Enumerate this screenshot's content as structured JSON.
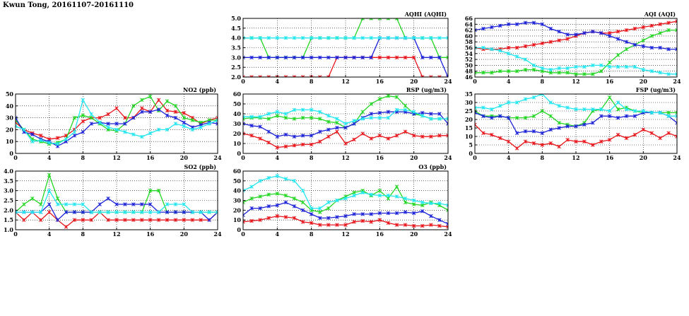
{
  "page_title": "Kwun Tong, 20161107-20161110",
  "colors": {
    "red": "#e8151b",
    "green": "#22d622",
    "blue": "#1c22d8",
    "cyan": "#22e6f0"
  },
  "chart_data": [
    {
      "id": "aqhi",
      "type": "line",
      "title": "AQHI (AQHI)",
      "xlim": [
        0,
        24
      ],
      "ylim": [
        2.0,
        5.0
      ],
      "grid": true,
      "xticks": [
        "0",
        "4",
        "8",
        "12",
        "16",
        "20",
        "24"
      ],
      "yticks": [
        "2.0",
        "2.5",
        "3.0",
        "3.5",
        "4.0",
        "4.5",
        "5.0"
      ],
      "x": [
        0,
        1,
        2,
        3,
        4,
        5,
        6,
        7,
        8,
        9,
        10,
        11,
        12,
        13,
        14,
        15,
        16,
        17,
        18,
        19,
        20,
        21,
        22,
        23,
        24
      ],
      "series": [
        {
          "color": "red",
          "values": [
            2,
            2,
            2,
            2,
            2,
            2,
            2,
            2,
            2,
            2,
            2,
            3,
            3,
            3,
            3,
            3,
            3,
            3,
            3,
            3,
            3,
            2,
            2,
            2,
            2
          ]
        },
        {
          "color": "green",
          "values": [
            4,
            4,
            4,
            3,
            3,
            3,
            3,
            3,
            4,
            4,
            4,
            4,
            4,
            4,
            5,
            5,
            5,
            5,
            5,
            4,
            4,
            4,
            4,
            3,
            3
          ]
        },
        {
          "color": "blue",
          "values": [
            3,
            3,
            3,
            3,
            3,
            3,
            3,
            3,
            3,
            3,
            3,
            3,
            3,
            3,
            3,
            3,
            4,
            4,
            4,
            4,
            4,
            3,
            3,
            3,
            2
          ]
        },
        {
          "color": "cyan",
          "values": [
            4,
            4,
            4,
            4,
            4,
            4,
            4,
            4,
            4,
            4,
            4,
            4,
            4,
            4,
            4,
            4,
            4,
            4,
            4,
            4,
            4,
            4,
            4,
            4,
            4
          ]
        }
      ]
    },
    {
      "id": "aqi",
      "type": "line",
      "title": "AQI (AQI)",
      "xlim": [
        0,
        24
      ],
      "ylim": [
        46,
        66
      ],
      "grid": true,
      "xticks": [
        "0",
        "4",
        "8",
        "12",
        "16",
        "20",
        "24"
      ],
      "yticks": [
        "46",
        "48",
        "50",
        "52",
        "54",
        "56",
        "58",
        "60",
        "62",
        "64",
        "66"
      ],
      "x": [
        0,
        1,
        2,
        3,
        4,
        5,
        6,
        7,
        8,
        9,
        10,
        11,
        12,
        13,
        14,
        15,
        16,
        17,
        18,
        19,
        20,
        21,
        22,
        23,
        24
      ],
      "series": [
        {
          "color": "red",
          "values": [
            56,
            55.5,
            55.5,
            55.5,
            56,
            56,
            56.5,
            57,
            57.5,
            58,
            58.5,
            59,
            60,
            61,
            61.5,
            61,
            61,
            61.5,
            62,
            62.5,
            63,
            63.5,
            64,
            64.5,
            65
          ]
        },
        {
          "color": "green",
          "values": [
            47.5,
            47.5,
            47.5,
            48,
            48,
            48,
            48.5,
            48.5,
            48,
            47.5,
            47.5,
            47.5,
            47,
            47,
            47,
            48,
            51,
            53.5,
            55.5,
            57,
            58.5,
            60,
            61,
            62,
            62
          ]
        },
        {
          "color": "blue",
          "values": [
            62,
            62.5,
            63,
            63.5,
            64,
            64,
            64.5,
            64.5,
            64,
            62.5,
            61.5,
            60.5,
            60.5,
            61,
            61.5,
            61,
            60,
            59,
            58,
            57,
            56.5,
            56,
            56,
            55.5,
            55.5
          ]
        },
        {
          "color": "cyan",
          "values": [
            56,
            56,
            55.5,
            55,
            54,
            53,
            52,
            50,
            49,
            48.5,
            49,
            49,
            49.5,
            49.5,
            50,
            50,
            49.5,
            49.5,
            49.5,
            49.5,
            48.5,
            48,
            47.5,
            47,
            47
          ]
        }
      ]
    },
    {
      "id": "no2",
      "type": "line",
      "title": "NO2 (ppb)",
      "xlim": [
        0,
        24
      ],
      "ylim": [
        0,
        50
      ],
      "grid": true,
      "xticks": [
        "0",
        "4",
        "8",
        "12",
        "16",
        "20",
        "24"
      ],
      "yticks": [
        "0",
        "10",
        "20",
        "30",
        "40",
        "50"
      ],
      "x": [
        0,
        1,
        2,
        3,
        4,
        5,
        6,
        7,
        8,
        9,
        10,
        11,
        12,
        13,
        14,
        15,
        16,
        17,
        18,
        19,
        20,
        21,
        22,
        23,
        24
      ],
      "series": [
        {
          "color": "red",
          "values": [
            26,
            20,
            17,
            15,
            12,
            13,
            15,
            20,
            27,
            30,
            30,
            33,
            38,
            30,
            30,
            38,
            35,
            45,
            36,
            35,
            34,
            30,
            25,
            28,
            30
          ]
        },
        {
          "color": "green",
          "values": [
            28,
            20,
            12,
            10,
            8,
            9,
            12,
            30,
            32,
            30,
            25,
            20,
            19,
            25,
            40,
            45,
            48,
            36,
            44,
            40,
            30,
            28,
            26,
            28,
            28
          ]
        },
        {
          "color": "blue",
          "values": [
            30,
            18,
            16,
            12,
            10,
            6,
            10,
            15,
            18,
            25,
            26,
            25,
            25,
            25,
            30,
            35,
            35,
            37,
            32,
            30,
            26,
            22,
            24,
            26,
            25
          ]
        },
        {
          "color": "cyan",
          "values": [
            23,
            20,
            10,
            11,
            9,
            8,
            12,
            18,
            45,
            33,
            26,
            22,
            20,
            18,
            16,
            14,
            17,
            20,
            20,
            25,
            23,
            20,
            22,
            25,
            28
          ]
        }
      ]
    },
    {
      "id": "rsp",
      "type": "line",
      "title": "RSP (ug/m3)",
      "xlim": [
        0,
        24
      ],
      "ylim": [
        0,
        60
      ],
      "grid": true,
      "xticks": [
        "0",
        "4",
        "8",
        "12",
        "16",
        "20",
        "24"
      ],
      "yticks": [
        "0",
        "10",
        "20",
        "30",
        "40",
        "50",
        "60"
      ],
      "x": [
        0,
        1,
        2,
        3,
        4,
        5,
        6,
        7,
        8,
        9,
        10,
        11,
        12,
        13,
        14,
        15,
        16,
        17,
        18,
        19,
        20,
        21,
        22,
        23,
        24
      ],
      "series": [
        {
          "color": "red",
          "values": [
            20,
            18,
            15,
            11,
            6,
            7,
            8,
            9,
            9,
            12,
            17,
            22,
            10,
            14,
            20,
            15,
            18,
            15,
            18,
            22,
            18,
            17,
            17,
            18,
            18
          ]
        },
        {
          "color": "green",
          "values": [
            35,
            36,
            36,
            35,
            38,
            36,
            35,
            36,
            36,
            35,
            32,
            31,
            26,
            30,
            42,
            50,
            55,
            58,
            57,
            48,
            40,
            38,
            35,
            35,
            35
          ]
        },
        {
          "color": "blue",
          "values": [
            30,
            28,
            27,
            22,
            17,
            19,
            17,
            18,
            18,
            22,
            24,
            26,
            26,
            30,
            36,
            40,
            41,
            42,
            42,
            42,
            40,
            41,
            40,
            40,
            30
          ]
        },
        {
          "color": "cyan",
          "values": [
            37,
            37,
            37,
            40,
            42,
            40,
            44,
            44,
            44,
            42,
            38,
            35,
            30,
            33,
            35,
            36,
            36,
            36,
            44,
            44,
            42,
            38,
            35,
            35,
            35
          ]
        }
      ]
    },
    {
      "id": "fsp",
      "type": "line",
      "title": "FSP (ug/m3)",
      "xlim": [
        0,
        24
      ],
      "ylim": [
        0,
        35
      ],
      "grid": true,
      "xticks": [
        "0",
        "4",
        "8",
        "12",
        "16",
        "20",
        "24"
      ],
      "yticks": [
        "0",
        "5",
        "10",
        "15",
        "20",
        "25",
        "30",
        "35"
      ],
      "x": [
        0,
        1,
        2,
        3,
        4,
        5,
        6,
        7,
        8,
        9,
        10,
        11,
        12,
        13,
        14,
        15,
        16,
        17,
        18,
        19,
        20,
        21,
        22,
        23,
        24
      ],
      "series": [
        {
          "color": "red",
          "values": [
            17,
            12,
            11,
            9,
            7,
            3,
            7,
            6,
            5,
            6,
            4,
            8,
            7,
            7,
            5,
            7,
            8,
            11,
            9,
            11,
            14,
            12,
            9,
            12,
            10
          ]
        },
        {
          "color": "green",
          "values": [
            25,
            22,
            22,
            22,
            21,
            21,
            21,
            22,
            25,
            22,
            18,
            17,
            16,
            18,
            25,
            26,
            33,
            26,
            27,
            25,
            24,
            24,
            24,
            24,
            24
          ]
        },
        {
          "color": "blue",
          "values": [
            24,
            22,
            21,
            22,
            21,
            12,
            13,
            13,
            12,
            14,
            15,
            16,
            16,
            17,
            18,
            22,
            22,
            21,
            22,
            22,
            24,
            24,
            24,
            22,
            18
          ]
        },
        {
          "color": "cyan",
          "values": [
            27,
            27,
            26,
            28,
            30,
            30,
            32,
            33,
            35,
            30,
            28,
            27,
            26,
            26,
            26,
            26,
            25,
            30,
            26,
            25,
            25,
            24,
            24,
            22,
            22
          ]
        }
      ]
    },
    {
      "id": "so2",
      "type": "line",
      "title": "SO2 (ppb)",
      "xlim": [
        0,
        24
      ],
      "ylim": [
        1.0,
        4.0
      ],
      "grid": true,
      "xticks": [
        "0",
        "4",
        "8",
        "12",
        "16",
        "20",
        "24"
      ],
      "yticks": [
        "1.0",
        "1.5",
        "2.0",
        "2.5",
        "3.0",
        "3.5",
        "4.0"
      ],
      "x": [
        0,
        1,
        2,
        3,
        4,
        5,
        6,
        7,
        8,
        9,
        10,
        11,
        12,
        13,
        14,
        15,
        16,
        17,
        18,
        19,
        20,
        21,
        22,
        23,
        24
      ],
      "series": [
        {
          "color": "red",
          "values": [
            1.9,
            1.5,
            1.9,
            1.5,
            1.9,
            1.5,
            1.15,
            1.5,
            1.5,
            1.5,
            1.9,
            1.5,
            1.5,
            1.5,
            1.5,
            1.5,
            1.5,
            1.5,
            1.5,
            1.5,
            1.5,
            1.5,
            1.5,
            1.5,
            1.9
          ]
        },
        {
          "color": "green",
          "values": [
            1.9,
            2.3,
            2.6,
            2.3,
            3.8,
            2.6,
            1.9,
            1.9,
            1.9,
            1.9,
            1.9,
            1.9,
            1.9,
            1.9,
            1.9,
            1.9,
            3.0,
            3.0,
            1.9,
            1.9,
            1.9,
            1.9,
            1.9,
            1.9,
            1.9
          ]
        },
        {
          "color": "blue",
          "values": [
            1.9,
            1.9,
            1.9,
            1.9,
            2.3,
            1.5,
            1.9,
            1.9,
            1.9,
            1.9,
            2.3,
            2.6,
            2.3,
            2.3,
            2.3,
            2.3,
            2.3,
            1.9,
            1.9,
            1.9,
            1.9,
            1.9,
            1.9,
            1.5,
            1.9
          ]
        },
        {
          "color": "cyan",
          "values": [
            1.9,
            1.9,
            1.9,
            1.9,
            3.0,
            2.3,
            2.3,
            2.3,
            2.3,
            1.9,
            1.9,
            1.9,
            1.9,
            1.9,
            1.9,
            1.9,
            1.9,
            1.9,
            2.3,
            2.3,
            2.3,
            1.9,
            1.9,
            1.9,
            1.9
          ]
        }
      ]
    },
    {
      "id": "o3",
      "type": "line",
      "title": "O3 (ppb)",
      "xlim": [
        0,
        24
      ],
      "ylim": [
        0,
        60
      ],
      "grid": true,
      "xticks": [
        "0",
        "4",
        "8",
        "12",
        "16",
        "20",
        "24"
      ],
      "yticks": [
        "0",
        "10",
        "20",
        "30",
        "40",
        "50",
        "60"
      ],
      "x": [
        0,
        1,
        2,
        3,
        4,
        5,
        6,
        7,
        8,
        9,
        10,
        11,
        12,
        13,
        14,
        15,
        16,
        17,
        18,
        19,
        20,
        21,
        22,
        23,
        24
      ],
      "series": [
        {
          "color": "red",
          "values": [
            8,
            9,
            10,
            12,
            14,
            13,
            12,
            8,
            7,
            5,
            5,
            5,
            5,
            8,
            9,
            8,
            10,
            7,
            5,
            5,
            4,
            4,
            5,
            4,
            3
          ]
        },
        {
          "color": "green",
          "values": [
            28,
            32,
            34,
            36,
            37,
            35,
            32,
            28,
            20,
            18,
            22,
            30,
            34,
            38,
            40,
            35,
            40,
            32,
            44,
            28,
            26,
            25,
            28,
            25,
            20
          ]
        },
        {
          "color": "blue",
          "values": [
            15,
            22,
            22,
            24,
            25,
            28,
            24,
            20,
            16,
            12,
            12,
            13,
            14,
            16,
            16,
            16,
            17,
            17,
            17,
            18,
            17,
            19,
            14,
            10,
            6
          ]
        },
        {
          "color": "cyan",
          "values": [
            40,
            44,
            50,
            53,
            55,
            52,
            50,
            40,
            22,
            22,
            28,
            30,
            32,
            35,
            38,
            36,
            35,
            35,
            34,
            32,
            30,
            28,
            27,
            27,
            25
          ]
        }
      ]
    }
  ]
}
